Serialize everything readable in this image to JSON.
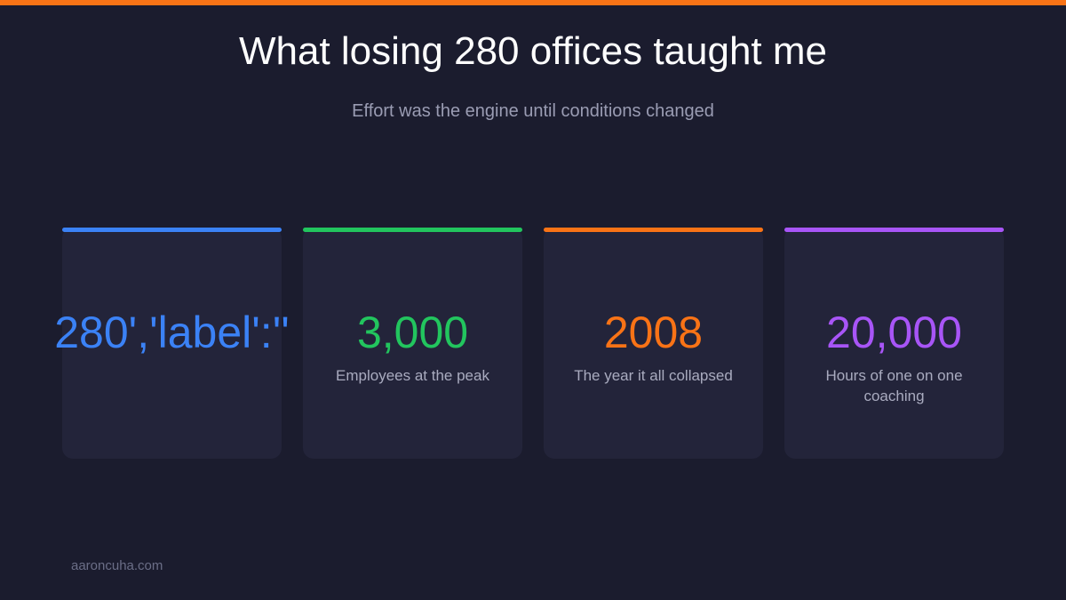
{
  "header": {
    "title": "What losing 280 offices taught me",
    "subtitle": "Effort was the engine until conditions changed"
  },
  "cards": [
    {
      "value": "280','label':''",
      "color": "#3b82f6"
    },
    {
      "value": "3,000",
      "label": "Employees at the peak",
      "color": "#22c55e"
    },
    {
      "value": "2008",
      "label": "The year it all collapsed",
      "color": "#f97316"
    },
    {
      "value": "20,000",
      "label": "Hours of one on one coaching",
      "color": "#a855f7"
    }
  ],
  "footer": {
    "text": "aaroncuha.com"
  },
  "accent_color": "#f97316"
}
